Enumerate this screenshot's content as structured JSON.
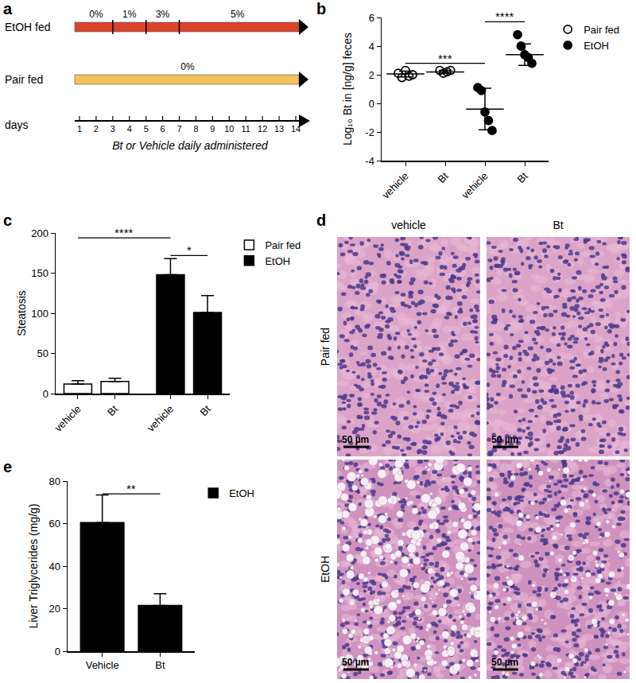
{
  "panel_labels": [
    "a",
    "b",
    "c",
    "d",
    "e"
  ],
  "timeline": {
    "rows": [
      {
        "label": "EtOH fed",
        "color": "#d9442b",
        "segments": [
          {
            "from": 1,
            "to": 3,
            "label": "0%"
          },
          {
            "from": 3,
            "to": 5,
            "label": "1%"
          },
          {
            "from": 5,
            "to": 7,
            "label": "3%"
          },
          {
            "from": 7,
            "to": 14,
            "label": "5%"
          }
        ]
      },
      {
        "label": "Pair fed",
        "color": "#f2c35b",
        "segments": [
          {
            "from": 1,
            "to": 14,
            "label": "0%"
          }
        ]
      }
    ],
    "days": [
      1,
      2,
      3,
      4,
      5,
      6,
      7,
      8,
      9,
      10,
      11,
      12,
      13,
      14
    ],
    "days_label": "days",
    "note": "Bt or Vehicle daily administered"
  },
  "chart_data": [
    {
      "type": "scatter",
      "ylabel": "Log₁₀ Bt in [ng/g] feces",
      "categories": [
        "vehicle",
        "Bt",
        "vehicle",
        "Bt"
      ],
      "ylim": [
        -4,
        6
      ],
      "yticks": [
        -4,
        -2,
        0,
        2,
        4,
        6
      ],
      "legend": "right",
      "series": [
        {
          "name": "Pair fed",
          "color": "#000000",
          "marker": "open circle",
          "values": [
            [
              2.1,
              1.8,
              2.3,
              1.9,
              2.0
            ],
            [
              2.3,
              2.1,
              2.2,
              2.3
            ],
            null,
            null
          ],
          "means": [
            2.05,
            2.2,
            null,
            null
          ],
          "errors": [
            0.2,
            0.1,
            null,
            null
          ]
        },
        {
          "name": "EtOH",
          "color": "#000000",
          "marker": "filled circle",
          "values": [
            null,
            null,
            [
              1.1,
              0.9,
              -0.6,
              -1.2,
              -1.9
            ],
            [
              4.8,
              4.0,
              3.4,
              3.2,
              2.8
            ]
          ],
          "means": [
            null,
            null,
            -0.4,
            3.4
          ],
          "errors": [
            null,
            null,
            1.45,
            0.75
          ]
        }
      ],
      "annotations": [
        {
          "text": "***",
          "from": 0,
          "to": 2,
          "y": 2.8
        },
        {
          "text": "****",
          "from": 2,
          "to": 3,
          "y": 5.7
        }
      ]
    },
    {
      "type": "bar",
      "ylabel": "Steatosis",
      "categories": [
        "vehicle",
        "Bt",
        "vehicle",
        "Bt"
      ],
      "ylim": [
        0,
        200
      ],
      "yticks": [
        0,
        50,
        100,
        150,
        200
      ],
      "legend": "right",
      "series": [
        {
          "name": "Pair fed",
          "color": "#ffffff",
          "values": [
            12,
            15,
            null,
            null
          ],
          "errors": [
            4,
            4,
            null,
            null
          ]
        },
        {
          "name": "EtOH",
          "color": "#000000",
          "values": [
            null,
            null,
            148,
            101
          ],
          "errors": [
            null,
            null,
            20,
            21
          ]
        }
      ],
      "annotations": [
        {
          "text": "****",
          "from": 0,
          "to": 2,
          "y": 194
        },
        {
          "text": "*",
          "from": 2,
          "to": 3,
          "y": 172
        }
      ]
    },
    {
      "type": "bar",
      "ylabel": "Liver Triglycerides (mg/g)",
      "categories": [
        "Vehicle",
        "Bt"
      ],
      "ylim": [
        0,
        80
      ],
      "yticks": [
        0,
        20,
        40,
        60,
        80
      ],
      "legend": "right",
      "series": [
        {
          "name": "EtOH",
          "color": "#000000",
          "values": [
            60.5,
            21.5
          ],
          "errors": [
            13,
            5.5
          ]
        }
      ],
      "annotations": [
        {
          "text": "**",
          "from": 0,
          "to": 1,
          "y": 74
        }
      ]
    }
  ],
  "histology": {
    "columns": [
      "vehicle",
      "Bt"
    ],
    "rows": [
      "Pair fed",
      "EtOH"
    ],
    "scale_bar": "50 µm"
  }
}
